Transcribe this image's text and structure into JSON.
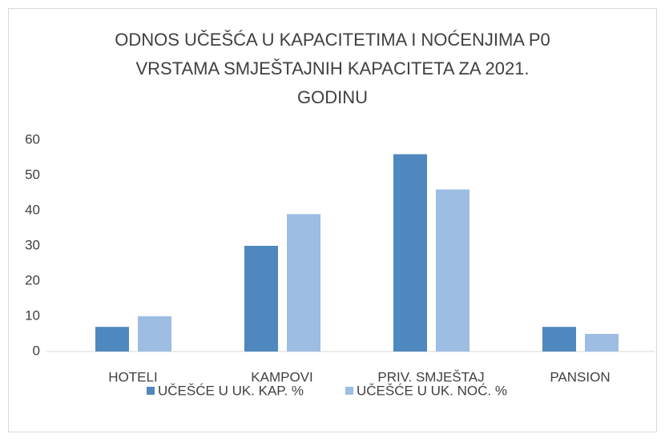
{
  "chart_data": {
    "type": "bar",
    "title": [
      "ODNOS UČEŠĆA U KAPACITETIMA I NOĆENJIMA P0",
      "VRSTAMA SMJEŠTAJNIH KAPACITETA ZA 2021.",
      "GODINU"
    ],
    "categories": [
      "HOTELI",
      "KAMPOVI",
      "PRIV. SMJEŠTAJ",
      "PANSION"
    ],
    "series": [
      {
        "name": "UČEŠĆE U UK. KAP. %",
        "color": "#4f88bf",
        "values": [
          7,
          30,
          56,
          7
        ]
      },
      {
        "name": "UČEŠĆE U UK. NOĆ. %",
        "color": "#9dbde3",
        "values": [
          10,
          39,
          46,
          5
        ]
      }
    ],
    "ylim": [
      0,
      60
    ],
    "yticks": [
      0,
      10,
      20,
      30,
      40,
      50,
      60
    ],
    "grid": false,
    "legend": "bottom"
  }
}
